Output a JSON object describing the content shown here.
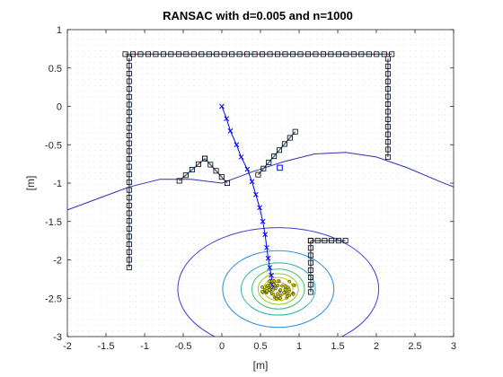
{
  "chart_data": {
    "type": "scatter",
    "title": "RANSAC with d=0.005 and n=1000",
    "xlabel": "[m]",
    "ylabel": "[m]",
    "xlim": [
      -2,
      3
    ],
    "ylim": [
      -3,
      1
    ],
    "x_ticks": [
      -2,
      -1.5,
      -1,
      -0.5,
      0,
      0.5,
      1,
      1.5,
      2,
      2.5,
      3
    ],
    "x_tick_labels": [
      "-2",
      "-1.5",
      "-1",
      "-0.5",
      "0",
      "0.5",
      "1",
      "1.5",
      "2",
      "2.5",
      "3"
    ],
    "y_ticks": [
      1,
      0.5,
      0,
      -0.5,
      -1,
      -1.5,
      -2,
      -2.5,
      -3
    ],
    "y_tick_labels": [
      "1",
      "0.5",
      "0",
      "-0.5",
      "-1",
      "-1.5",
      "-2",
      "-2.5",
      "-3"
    ],
    "grid": false,
    "legend": "none",
    "colors": {
      "fitted_lines": "#1f77b4",
      "line_points": "#e0313a",
      "squares": "#000000",
      "trajectory": "#0000ff",
      "outlier_square": "#0000ff",
      "estimate_points": "#c8c800",
      "background_dots": "#9fc99f"
    },
    "segments": [
      {
        "name": "",
        "x": [
          -1.25,
          2.2
        ],
        "y": [
          0.68,
          0.68
        ]
      },
      {
        "name": "",
        "x": [
          -1.2,
          -1.2
        ],
        "y": [
          0.63,
          -2.1
        ]
      },
      {
        "name": "",
        "x": [
          2.15,
          2.15
        ],
        "y": [
          0.62,
          -0.66
        ]
      },
      {
        "name": "",
        "x": [
          -0.55,
          -0.22
        ],
        "y": [
          -0.97,
          -0.68
        ]
      },
      {
        "name": "",
        "x": [
          -0.22,
          0.07
        ],
        "y": [
          -0.68,
          -1.0
        ]
      },
      {
        "name": "",
        "x": [
          0.47,
          0.95
        ],
        "y": [
          -0.89,
          -0.33
        ]
      },
      {
        "name": "",
        "x": [
          1.15,
          1.6
        ],
        "y": [
          -1.75,
          -1.75
        ]
      },
      {
        "name": "",
        "x": [
          1.15,
          1.15
        ],
        "y": [
          -1.75,
          -2.42
        ]
      }
    ],
    "trajectory": {
      "x": [
        0.0,
        0.06,
        0.11,
        0.19,
        0.25,
        0.33,
        0.39,
        0.44,
        0.49,
        0.53,
        0.56,
        0.58,
        0.6,
        0.62,
        0.64,
        0.65,
        0.66,
        0.67
      ],
      "y": [
        0.0,
        -0.16,
        -0.32,
        -0.5,
        -0.66,
        -0.82,
        -0.98,
        -1.15,
        -1.32,
        -1.5,
        -1.67,
        -1.84,
        -1.98,
        -2.1,
        -2.2,
        -2.28,
        -2.33,
        -2.35
      ]
    },
    "outlier": {
      "x": 0.75,
      "y": -0.8
    },
    "contours": {
      "center": [
        0.73,
        -2.38
      ],
      "levels": [
        {
          "rx": 1.3,
          "ry": 0.8,
          "color": "#3f3fd6"
        },
        {
          "rx": 0.72,
          "ry": 0.5,
          "color": "#2d8ce0"
        },
        {
          "rx": 0.48,
          "ry": 0.34,
          "color": "#22b2b2"
        },
        {
          "rx": 0.34,
          "ry": 0.26,
          "color": "#3fbf6a"
        },
        {
          "rx": 0.26,
          "ry": 0.2,
          "color": "#8bcc2a"
        },
        {
          "rx": 0.19,
          "ry": 0.15,
          "color": "#c8c800"
        },
        {
          "rx": 0.12,
          "ry": 0.09,
          "color": "#e0a020"
        }
      ],
      "outer_line": {
        "x": [
          -2,
          -1.6,
          -1.2,
          -0.8,
          -0.4,
          0.0,
          0.4,
          0.8,
          1.2,
          1.6,
          2.0,
          2.4,
          2.8,
          3.0
        ],
        "y": [
          -1.35,
          -1.2,
          -1.05,
          -0.95,
          -0.95,
          -1.0,
          -0.85,
          -0.72,
          -0.62,
          -0.6,
          -0.66,
          -0.8,
          -0.97,
          -1.05
        ]
      }
    }
  }
}
